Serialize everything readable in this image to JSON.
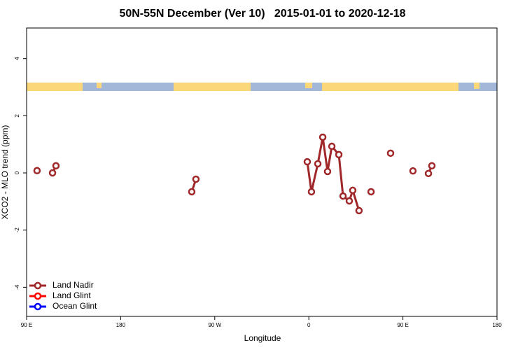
{
  "chart_data": {
    "type": "line",
    "title": "50N-55N December (Ver 10)   2015-01-01 to 2020-12-18",
    "x_label": "Longitude",
    "y_label": "XCO2 - MLO trend (ppm)",
    "xlim": [
      90,
      540
    ],
    "xticks": [
      {
        "value": 90,
        "label": "90 E"
      },
      180,
      {
        "value": 270,
        "label": "90 W"
      },
      {
        "value": 360,
        "label": "0"
      },
      {
        "value": 450,
        "label": "90 E"
      },
      {
        "value": 540,
        "label": "180"
      }
    ],
    "ylim": [
      -5.02,
      5.07
    ],
    "yticks": [
      -4,
      -2,
      0,
      2,
      4
    ],
    "legend": "bottom-left",
    "series": [
      {
        "name": "Land Nadir",
        "color": "#a0282a",
        "x": [
          100,
          null,
          114.8,
          118.1,
          null,
          248,
          252,
          null,
          358.5,
          362.5,
          368.6,
          373.3,
          377.9,
          382,
          388.7,
          392.7,
          398.7,
          402,
          408,
          null,
          419.5,
          null,
          438.2,
          null,
          459.6,
          null,
          474.4,
          477.7
        ],
        "values": [
          0.08,
          null,
          0,
          0.25,
          null,
          -0.66,
          -0.22,
          null,
          0.39,
          -0.66,
          0.32,
          1.25,
          0.05,
          0.93,
          0.64,
          -0.81,
          -0.98,
          -0.61,
          -1.32,
          null,
          -0.66,
          null,
          0.69,
          null,
          0.07,
          null,
          -0.02,
          0.25
        ]
      },
      {
        "name": "Land Glint",
        "color": "#ff0000",
        "x": [],
        "values": []
      },
      {
        "name": "Ocean Glint",
        "color": "#0000ff",
        "x": [],
        "values": []
      }
    ]
  }
}
